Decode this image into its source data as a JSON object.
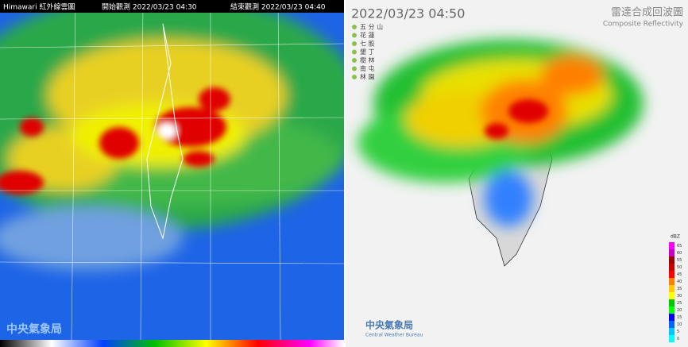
{
  "satellite": {
    "title": "Himawari 紅外線雲圖",
    "start": "開始觀測 2022/03/23 04:30",
    "end": "結束觀測 2022/03/23 04:40",
    "logo": "中央氣象局"
  },
  "radar": {
    "time": "2022/03/23  04:50",
    "title": "雷達合成回波圖",
    "subtitle": "Composite Reflectivity",
    "stations": [
      "五 分 山",
      "花 蓮",
      "七 股",
      "墾 丁",
      "樹 林",
      "南 屯",
      "林 園"
    ],
    "logo": "中央氣象局",
    "logo_en": "Central Weather Bureau",
    "unit": "dBZ",
    "scale": [
      65,
      60,
      55,
      50,
      45,
      40,
      35,
      30,
      25,
      20,
      15,
      10,
      5,
      0
    ],
    "colors": [
      "#ff00ff",
      "#c800c8",
      "#a00000",
      "#c80000",
      "#ff0000",
      "#ff8000",
      "#ffc800",
      "#ffff00",
      "#00c800",
      "#00ff00",
      "#0000ff",
      "#0064ff",
      "#00c8ff",
      "#00ffff"
    ]
  }
}
